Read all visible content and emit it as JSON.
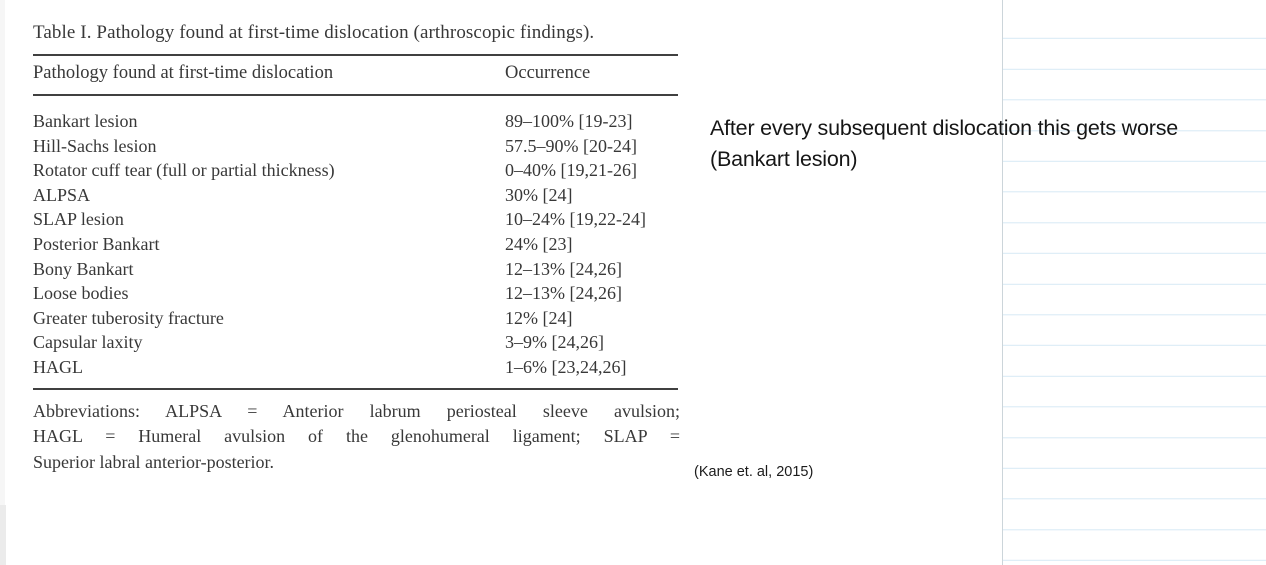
{
  "colors": {
    "ruled_line": "#d7e9f5",
    "divider": "#ccd5da",
    "scan_text": "#383838",
    "rule_color": "#404040",
    "annotation_color": "#161616"
  },
  "scan_table": {
    "caption": "Table I. Pathology found at first-time dislocation (arthroscopic findings).",
    "columns": {
      "pathology": "Pathology found at first-time dislocation",
      "occurrence": "Occurrence"
    },
    "rows": [
      {
        "pathology": "Bankart lesion",
        "occurrence": "89–100% [19-23]"
      },
      {
        "pathology": "Hill-Sachs lesion",
        "occurrence": "57.5–90% [20-24]"
      },
      {
        "pathology": "Rotator cuff tear (full or partial thickness)",
        "occurrence": "0–40% [19,21-26]"
      },
      {
        "pathology": "ALPSA",
        "occurrence": "30% [24]"
      },
      {
        "pathology": "SLAP lesion",
        "occurrence": "10–24% [19,22-24]"
      },
      {
        "pathology": "Posterior Bankart",
        "occurrence": "24% [23]"
      },
      {
        "pathology": "Bony Bankart",
        "occurrence": "12–13% [24,26]"
      },
      {
        "pathology": "Loose bodies",
        "occurrence": "12–13% [24,26]"
      },
      {
        "pathology": "Greater tuberosity fracture",
        "occurrence": "12% [24]"
      },
      {
        "pathology": "Capsular laxity",
        "occurrence": "3–9% [24,26]"
      },
      {
        "pathology": "HAGL",
        "occurrence": "1–6% [23,24,26]"
      }
    ],
    "footnote_lines": [
      "Abbreviations: ALPSA = Anterior labrum periosteal sleeve avulsion;",
      "HAGL = Humeral avulsion of the glenohumeral ligament; SLAP =",
      "Superior labral anterior-posterior."
    ]
  },
  "annotation": {
    "line1": "After every subsequent dislocation this gets worse",
    "line2": "(Bankart lesion)"
  },
  "citation": "(Kane et. al, 2015)"
}
